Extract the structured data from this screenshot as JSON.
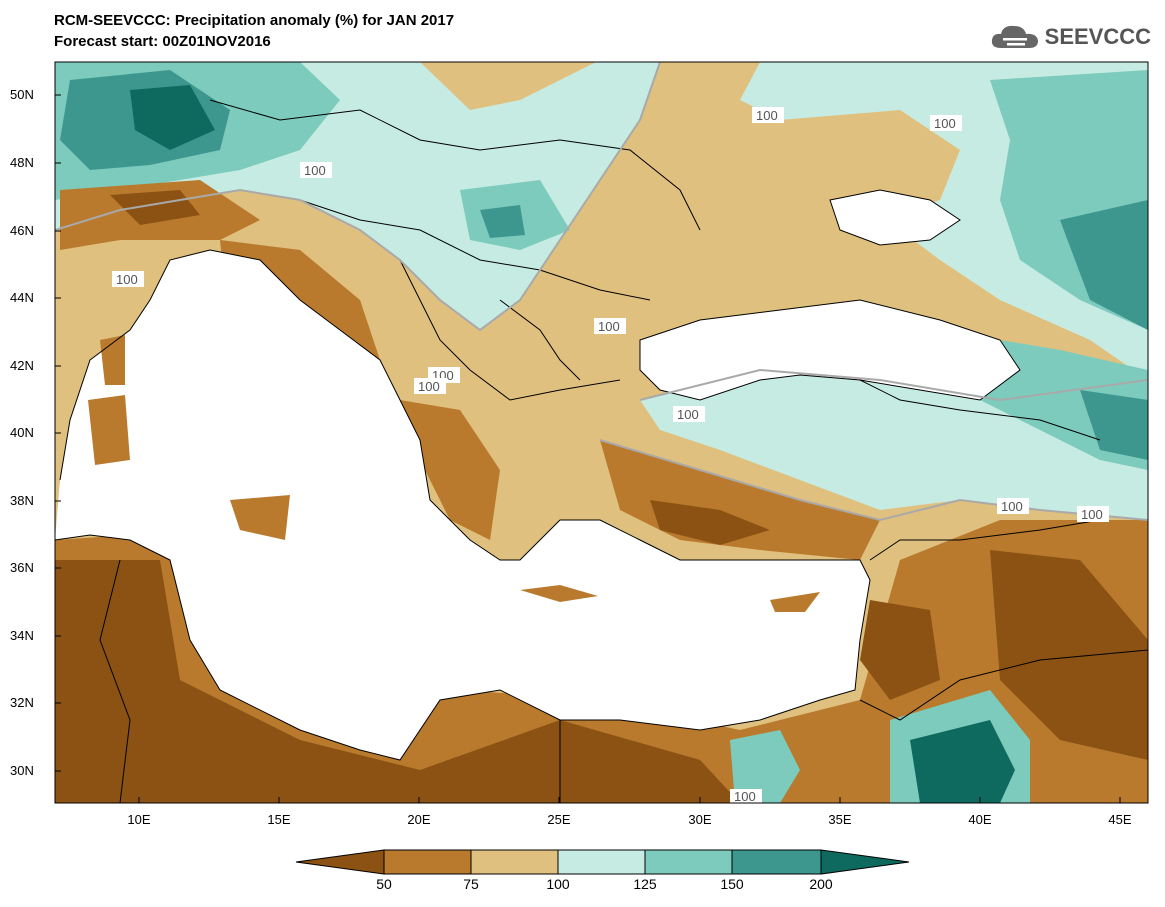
{
  "title_line1": "RCM-SEEVCCC: Precipitation anomaly (%) for JAN 2017",
  "title_line2": "Forecast start: 00Z01NOV2016",
  "logo_text": "SEEVCCC",
  "lat_labels": [
    "50N",
    "48N",
    "46N",
    "44N",
    "42N",
    "40N",
    "38N",
    "36N",
    "34N",
    "32N",
    "30N"
  ],
  "lon_labels": [
    "10E",
    "15E",
    "20E",
    "25E",
    "30E",
    "35E",
    "40E",
    "45E"
  ],
  "contour_labels": [
    "100",
    "100",
    "100",
    "100",
    "100",
    "100",
    "100",
    "100",
    "100",
    "100",
    "100"
  ],
  "colorbar": {
    "labels": [
      "50",
      "75",
      "100",
      "125",
      "150",
      "200"
    ],
    "colors": [
      "#8c5214",
      "#b97a2e",
      "#dfc07e",
      "#c6ebe2",
      "#7ccbbd",
      "#3d978f",
      "#0e6a5e"
    ]
  },
  "palette": {
    "very_dry": "#8c5214",
    "dry": "#b97a2e",
    "slightly_dry": "#dfc07e",
    "slightly_wet": "#c6ebe2",
    "wet": "#7ccbbd",
    "very_wet": "#3d978f",
    "extreme_wet": "#0e6a5e",
    "sea": "#ffffff"
  }
}
